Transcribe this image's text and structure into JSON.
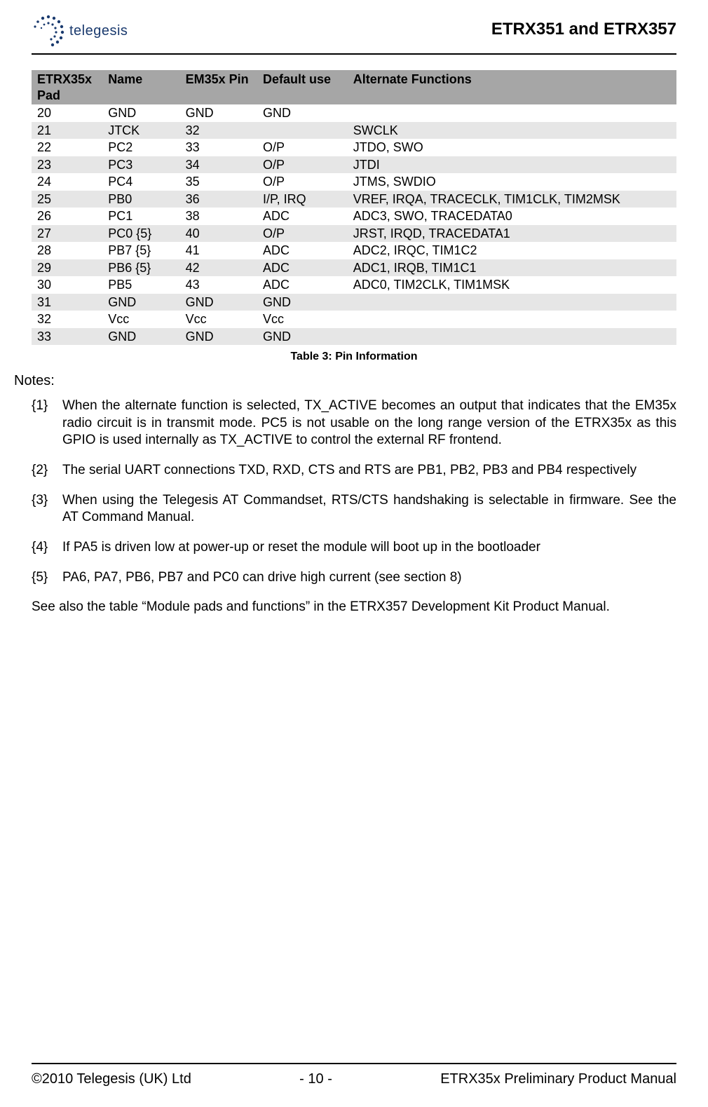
{
  "header": {
    "logo_text": "telegesis",
    "title": "ETRX351 and ETRX357"
  },
  "table": {
    "headers": [
      "ETRX35x Pad",
      "Name",
      "EM35x Pin",
      "Default use",
      "Alternate Functions"
    ],
    "header_html": [
      "ETRX35x<br>Pad",
      "Name",
      "EM35x Pin",
      "Default use",
      "Alternate Functions"
    ],
    "rows": [
      [
        "20",
        "GND",
        "GND",
        "GND",
        ""
      ],
      [
        "21",
        "JTCK",
        "32",
        "",
        "SWCLK"
      ],
      [
        "22",
        "PC2",
        "33",
        "O/P",
        "JTDO, SWO"
      ],
      [
        "23",
        "PC3",
        "34",
        "O/P",
        "JTDI"
      ],
      [
        "24",
        "PC4",
        "35",
        "O/P",
        "JTMS, SWDIO"
      ],
      [
        "25",
        "PB0",
        "36",
        "I/P, IRQ",
        "VREF, IRQA, TRACECLK, TIM1CLK, TIM2MSK"
      ],
      [
        "26",
        "PC1",
        "38",
        "ADC",
        "ADC3, SWO, TRACEDATA0"
      ],
      [
        "27",
        "PC0 {5}",
        "40",
        "O/P",
        "JRST, IRQD, TRACEDATA1"
      ],
      [
        "28",
        "PB7 {5}",
        "41",
        "ADC",
        "ADC2, IRQC, TIM1C2"
      ],
      [
        "29",
        "PB6 {5}",
        "42",
        "ADC",
        "ADC1, IRQB, TIM1C1"
      ],
      [
        "30",
        "PB5",
        "43",
        "ADC",
        "ADC0, TIM2CLK, TIM1MSK"
      ],
      [
        "31",
        "GND",
        "GND",
        "GND",
        ""
      ],
      [
        "32",
        "Vcc",
        "Vcc",
        "Vcc",
        ""
      ],
      [
        "33",
        "GND",
        "GND",
        "GND",
        ""
      ]
    ],
    "caption": "Table 3:  Pin Information",
    "header_bg": "#a6a6a6",
    "row_odd_bg": "#ffffff",
    "row_even_bg": "#e6e6e6"
  },
  "notes": {
    "heading": "Notes:",
    "items": [
      {
        "num": "{1}",
        "text": " When the alternate function is selected, TX_ACTIVE becomes an output that indicates that the EM35x radio circuit is in transmit mode.  PC5 is not usable on the long range version of the ETRX35x as this GPIO is used internally as TX_ACTIVE to control the external RF frontend.",
        "justify": true
      },
      {
        "num": "{2}",
        "text": "The serial UART connections TXD, RXD, CTS and RTS are PB1, PB2, PB3 and PB4 respectively",
        "justify": false
      },
      {
        "num": "{3}",
        "text": "When using the Telegesis AT Commandset, RTS/CTS handshaking is selectable in firmware.  See the AT Command Manual.",
        "justify": true
      },
      {
        "num": "{4}",
        "text": "If PA5 is driven low at power-up or reset the module will boot up in the bootloader",
        "justify": false
      },
      {
        "num": "{5}",
        "text": "PA6, PA7, PB6, PB7 and PC0 can drive high current (see section 8)",
        "justify": false
      }
    ],
    "see_also": "See also the table “Module pads and functions” in the ETRX357 Development Kit Product Manual."
  },
  "footer": {
    "left": "©2010 Telegesis (UK) Ltd",
    "center": "- 10 -",
    "right": "ETRX35x Preliminary Product Manual"
  }
}
